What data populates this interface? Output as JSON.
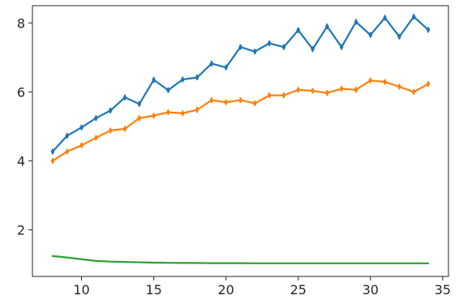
{
  "chart_data": {
    "type": "line",
    "title": "",
    "xlabel": "",
    "ylabel": "",
    "xlim": [
      6.6,
      35.4
    ],
    "ylim": [
      0.65,
      8.5
    ],
    "xticks": [
      10,
      15,
      20,
      25,
      30,
      35
    ],
    "yticks": [
      2,
      4,
      6,
      8
    ],
    "grid": false,
    "legend": "none",
    "x": [
      8,
      9,
      10,
      11,
      12,
      13,
      14,
      15,
      16,
      17,
      18,
      19,
      20,
      21,
      22,
      23,
      24,
      25,
      26,
      27,
      28,
      29,
      30,
      31,
      32,
      33,
      34
    ],
    "series": [
      {
        "color": "#1f77b4",
        "error_bars": true,
        "values": [
          4.27,
          4.73,
          4.97,
          5.24,
          5.46,
          5.84,
          5.65,
          6.35,
          6.05,
          6.36,
          6.42,
          6.82,
          6.71,
          7.3,
          7.17,
          7.41,
          7.3,
          7.79,
          7.24,
          7.9,
          7.3,
          8.03,
          7.65,
          8.15,
          7.6,
          8.18,
          7.8
        ]
      },
      {
        "color": "#ff7f0e",
        "error_bars": true,
        "values": [
          4.0,
          4.27,
          4.45,
          4.67,
          4.88,
          4.93,
          5.24,
          5.31,
          5.41,
          5.38,
          5.48,
          5.76,
          5.7,
          5.76,
          5.67,
          5.9,
          5.9,
          6.06,
          6.03,
          5.97,
          6.09,
          6.06,
          6.33,
          6.29,
          6.15,
          6.0,
          6.23
        ]
      },
      {
        "color": "#2ca02c",
        "error_bars": false,
        "values": [
          1.24,
          1.2,
          1.15,
          1.1,
          1.08,
          1.07,
          1.06,
          1.05,
          1.045,
          1.04,
          1.04,
          1.035,
          1.035,
          1.035,
          1.03,
          1.03,
          1.03,
          1.03,
          1.03,
          1.03,
          1.03,
          1.03,
          1.03,
          1.03,
          1.03,
          1.03,
          1.03
        ]
      }
    ]
  }
}
